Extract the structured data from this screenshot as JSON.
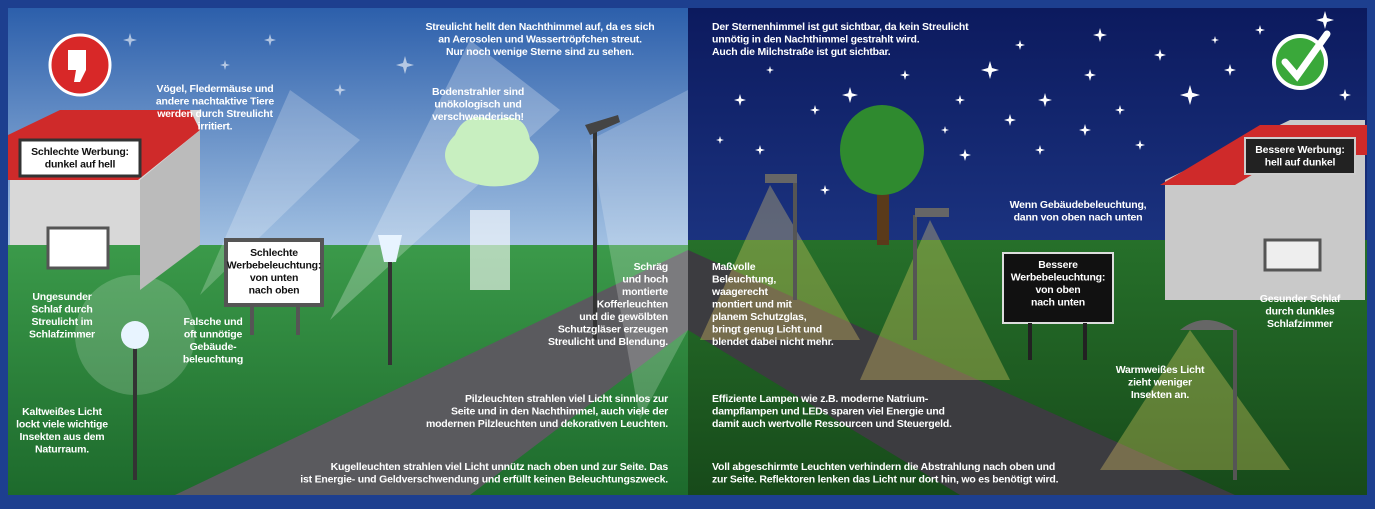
{
  "left": {
    "labels": [
      {
        "lines": [
          "Streulicht hellt den Nachthimmel auf, da es sich",
          "an Aerosolen und Wassertröpfchen streut.",
          "Nur noch wenige Sterne sind zu sehen."
        ]
      },
      {
        "lines": [
          "Vögel, Fledermäuse und",
          "andere nachtaktive Tiere",
          "werden durch Streulicht",
          "irritiert."
        ]
      },
      {
        "lines": [
          "Bodenstrahler sind",
          "unökologisch und",
          "verschwenderisch!"
        ]
      },
      {
        "lines": [
          "Schlechte Werbung:",
          "dunkel auf hell"
        ]
      },
      {
        "lines": [
          "Schlechte",
          "Werbebeleuchtung:",
          "von unten",
          "nach oben"
        ]
      },
      {
        "lines": [
          "Schräg",
          "und hoch",
          "montierte",
          "Kofferleuchten",
          "und die gewölbten",
          "Schutzgläser erzeugen",
          "Streulicht und Blendung."
        ]
      },
      {
        "lines": [
          "Ungesunder",
          "Schlaf durch",
          "Streulicht im",
          "Schlafzimmer"
        ]
      },
      {
        "lines": [
          "Falsche und",
          "oft unnötige",
          "Gebäude-",
          "beleuchtung"
        ]
      },
      {
        "lines": [
          "Kaltweißes Licht",
          "lockt viele wichtige",
          "Insekten aus dem",
          "Naturraum."
        ]
      },
      {
        "lines": [
          "Pilzleuchten strahlen viel Licht sinnlos zur",
          "Seite und in den Nachthimmel, auch viele der",
          "modernen Pilzleuchten und dekorativen Leuchten."
        ]
      },
      {
        "lines": [
          "Kugelleuchten strahlen viel Licht unnütz nach oben und zur Seite. Das",
          "ist Energie- und Geldverschwendung und erfüllt keinen Beleuchtungszweck."
        ]
      }
    ]
  },
  "right": {
    "labels": [
      {
        "lines": [
          "Der Sternenhimmel ist gut sichtbar, da kein Streulicht",
          "unnötig in den Nachthimmel gestrahlt wird.",
          "Auch die Milchstraße ist gut sichtbar."
        ]
      },
      {
        "lines": [
          "Bessere Werbung:",
          "hell auf dunkel"
        ]
      },
      {
        "lines": [
          "Wenn Gebäudebeleuchtung,",
          "dann von oben nach unten"
        ]
      },
      {
        "lines": [
          "Bessere",
          "Werbebeleuchtung:",
          "von oben",
          "nach unten"
        ]
      },
      {
        "lines": [
          "Maßvolle",
          "Beleuchtung,",
          "waagerecht",
          "montiert und mit",
          "planem Schutzglas,",
          "bringt genug Licht und",
          "blendet dabei nicht mehr."
        ]
      },
      {
        "lines": [
          "Gesunder Schlaf",
          "durch dunkles",
          "Schlafzimmer"
        ]
      },
      {
        "lines": [
          "Warmweißes Licht",
          "zieht weniger",
          "Insekten an."
        ]
      },
      {
        "lines": [
          "Effiziente Lampen wie z.B. moderne Natrium-",
          "dampflampen und LEDs sparen viel Energie und",
          "damit auch wertvolle Ressourcen und Steuergeld."
        ]
      },
      {
        "lines": [
          "Voll abgeschirmte Leuchten verhindern die Abstrahlung nach oben und",
          "zur Seite. Reflektoren lenken das Licht nur dort hin, wo es benötigt wird."
        ]
      }
    ]
  }
}
